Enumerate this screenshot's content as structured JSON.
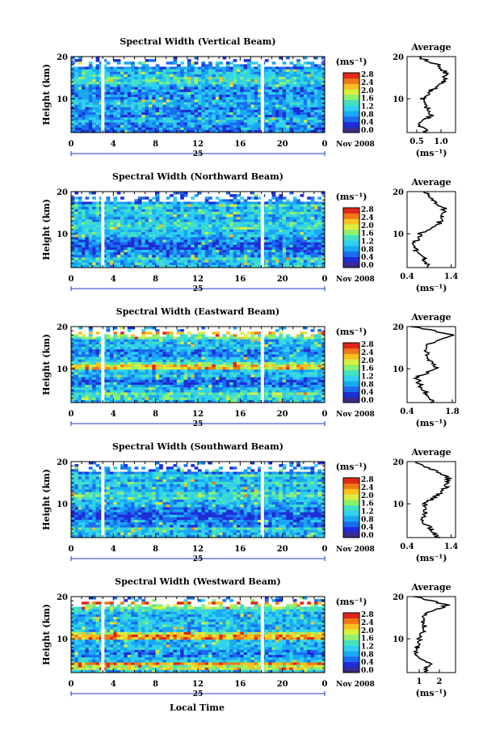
{
  "figure": {
    "xlabel": "Local Time",
    "date_label": "Nov 2008",
    "day_label": "25",
    "x_ticks": [
      "0",
      "4",
      "8",
      "12",
      "16",
      "20",
      "0"
    ],
    "y_ticks": [
      "20",
      "10"
    ],
    "y_label": "Height (km)",
    "colorbar_unit": "(ms⁻¹)",
    "colorbar_ticks": [
      "2.8",
      "2.4",
      "2.0",
      "1.6",
      "1.2",
      "0.8",
      "0.4",
      "0.0"
    ],
    "avg_title": "Average",
    "avg_xlabel": "(ms⁻¹)"
  },
  "colors": {
    "colormap": [
      "#3a2a8c",
      "#1e2ed6",
      "#1a6cf0",
      "#1aa8f5",
      "#2fd0f0",
      "#45e0c0",
      "#8ef070",
      "#d8f040",
      "#f8c020",
      "#f07818",
      "#e02818"
    ],
    "profile_line": "#000000"
  },
  "chart_data": [
    {
      "type": "heatmap",
      "title": "Spectral Width (Vertical Beam)",
      "xlim": [
        0,
        24
      ],
      "ylim": [
        2,
        20
      ],
      "colorbar_range": [
        0.0,
        2.8
      ],
      "data_gaps_hours": [
        3.0,
        18.1
      ],
      "avg_profile": {
        "xticks": [
          "0.5",
          "1.0"
        ],
        "xlim": [
          0.3,
          1.3
        ],
        "heights": [
          2,
          4,
          6,
          8,
          10,
          12,
          14,
          16,
          18,
          20
        ],
        "values": [
          0.72,
          0.55,
          0.8,
          0.7,
          0.62,
          0.8,
          1.05,
          1.1,
          0.95,
          0.5
        ]
      }
    },
    {
      "type": "heatmap",
      "title": "Spectral Width (Northward Beam)",
      "xlim": [
        0,
        24
      ],
      "ylim": [
        2,
        20
      ],
      "colorbar_range": [
        0.0,
        2.8
      ],
      "data_gaps_hours": [
        3.0,
        18.1
      ],
      "avg_profile": {
        "xticks": [
          "0.4",
          "1.4"
        ],
        "xlim": [
          0.4,
          1.5
        ],
        "heights": [
          2,
          4,
          6,
          8,
          10,
          12,
          14,
          16,
          18,
          20
        ],
        "values": [
          0.9,
          0.8,
          0.6,
          0.58,
          0.7,
          1.1,
          1.2,
          1.25,
          0.95,
          0.8
        ]
      }
    },
    {
      "type": "heatmap",
      "title": "Spectral Width (Eastward Beam)",
      "xlim": [
        0,
        24
      ],
      "ylim": [
        2,
        20
      ],
      "colorbar_range": [
        0.0,
        2.8
      ],
      "data_gaps_hours": [
        3.0,
        18.1
      ],
      "avg_profile": {
        "xticks": [
          "0.4",
          "1.8"
        ],
        "xlim": [
          0.4,
          1.9
        ],
        "heights": [
          2,
          4,
          6,
          8,
          10,
          12,
          14,
          16,
          18,
          20
        ],
        "values": [
          1.2,
          1.0,
          0.8,
          0.7,
          1.3,
          1.1,
          1.0,
          1.1,
          1.8,
          0.6
        ]
      }
    },
    {
      "type": "heatmap",
      "title": "Spectral Width (Southward Beam)",
      "xlim": [
        0,
        24
      ],
      "ylim": [
        2,
        20
      ],
      "colorbar_range": [
        0.0,
        2.8
      ],
      "data_gaps_hours": [
        3.0,
        18.1
      ],
      "avg_profile": {
        "xticks": [
          "0.4",
          "1.4"
        ],
        "xlim": [
          0.4,
          1.5
        ],
        "heights": [
          2,
          4,
          6,
          8,
          10,
          12,
          14,
          16,
          18,
          20
        ],
        "values": [
          1.1,
          0.95,
          0.75,
          0.8,
          0.8,
          1.1,
          1.3,
          1.35,
          1.0,
          0.6
        ]
      }
    },
    {
      "type": "heatmap",
      "title": "Spectral Width (Westward Beam)",
      "xlim": [
        0,
        24
      ],
      "ylim": [
        2,
        20
      ],
      "colorbar_range": [
        0.0,
        2.8
      ],
      "data_gaps_hours": [
        3.0,
        18.1
      ],
      "avg_profile": {
        "xticks": [
          "1",
          "2"
        ],
        "xlim": [
          0.4,
          2.8
        ],
        "heights": [
          2,
          4,
          6,
          8,
          10,
          12,
          14,
          16,
          18,
          20
        ],
        "values": [
          1.3,
          1.5,
          0.9,
          0.9,
          1.0,
          1.3,
          1.2,
          1.3,
          2.4,
          0.8
        ]
      }
    }
  ]
}
